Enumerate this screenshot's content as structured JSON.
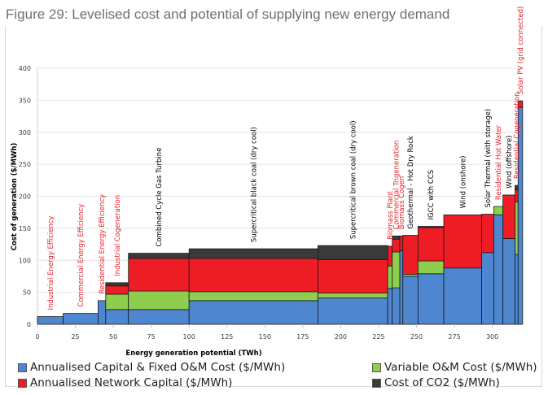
{
  "figure_title": "Figure 29: Levelised cost and potential of supplying new energy demand",
  "colors": {
    "capital": "#4f86d0",
    "variable": "#8dce4e",
    "network": "#ee1c25",
    "co2": "#3a3a3a",
    "red_label": "#e8202a",
    "black_label": "#000000",
    "grid": "#e4e4e4"
  },
  "chart_data": {
    "type": "bar",
    "subtype": "variable-width stacked (supply cost curve)",
    "title": "Figure 29: Levelised cost and potential of supplying new energy demand",
    "xlabel": "Energy generation potential (TWh)",
    "ylabel": "Cost of generation ($/MWh)",
    "xlim": [
      0,
      330
    ],
    "ylim": [
      0,
      400
    ],
    "xticks": [
      0,
      25,
      50,
      75,
      100,
      125,
      150,
      175,
      200,
      225,
      250,
      275,
      300
    ],
    "yticks": [
      0,
      50,
      100,
      150,
      200,
      250,
      300,
      350,
      400
    ],
    "grid": true,
    "legend_position": "bottom",
    "series": [
      {
        "key": "capital",
        "name": "Annualised Capital & Fixed O&M Cost ($/MWh)"
      },
      {
        "key": "variable",
        "name": "Variable O&M Cost ($/MWh)"
      },
      {
        "key": "network",
        "name": "Annualised Network Capital ($/MWh)"
      },
      {
        "key": "co2",
        "name": "Cost of CO2 ($/MWh)"
      }
    ],
    "bars": [
      {
        "label": "Industrial Energy Efficiency",
        "label_color": "red",
        "x0": 0,
        "x1": 17,
        "capital": 12,
        "variable": 0,
        "network": 0,
        "co2": 0
      },
      {
        "label": "Commercial Energy Efficiency",
        "label_color": "red",
        "x0": 17,
        "x1": 40,
        "capital": 17,
        "variable": 0,
        "network": 0,
        "co2": 0
      },
      {
        "label": "Residential Energy Efficiency",
        "label_color": "red",
        "x0": 40,
        "x1": 45,
        "capital": 37,
        "variable": 0,
        "network": 0,
        "co2": 0
      },
      {
        "label": "Industrial Cogeneration",
        "label_color": "red",
        "x0": 45,
        "x1": 60,
        "capital": 23,
        "variable": 24,
        "network": 13,
        "co2": 5
      },
      {
        "label": "Combined Cycle Gas Turbine",
        "label_color": "black",
        "x0": 60,
        "x1": 100,
        "capital": 23,
        "variable": 29,
        "network": 51,
        "co2": 8
      },
      {
        "label": "Supercritical black coal (dry cool)",
        "label_color": "black",
        "x0": 100,
        "x1": 185,
        "capital": 37,
        "variable": 14,
        "network": 52,
        "co2": 15
      },
      {
        "label": "Supercritical brown coal (dry cool)",
        "label_color": "black",
        "x0": 185,
        "x1": 231,
        "capital": 41,
        "variable": 8,
        "network": 52,
        "co2": 22
      },
      {
        "label": "Biomass Plant",
        "label_color": "red",
        "x0": 231,
        "x1": 234,
        "capital": 56,
        "variable": 35,
        "network": 31,
        "co2": 0
      },
      {
        "label": "Commercial Trigeneration",
        "label_color": "red",
        "x0": 234,
        "x1": 239,
        "capital": 57,
        "variable": 56,
        "network": 20,
        "co2": 5
      },
      {
        "label": "Biomass Cogen",
        "label_color": "red",
        "x0": 239,
        "x1": 241,
        "capital": 115,
        "variable": 0,
        "network": 23,
        "co2": 0
      },
      {
        "label": "Geothermal - Hot Dry Rock",
        "label_color": "black",
        "x0": 241,
        "x1": 251,
        "capital": 75,
        "variable": 3,
        "network": 61,
        "co2": 0
      },
      {
        "label": "IGCC with CCS",
        "label_color": "black",
        "x0": 251,
        "x1": 268,
        "capital": 79,
        "variable": 20,
        "network": 52,
        "co2": 2
      },
      {
        "label": "Wind (onshore)",
        "label_color": "black",
        "x0": 268,
        "x1": 293,
        "capital": 88,
        "variable": 0,
        "network": 83,
        "co2": 0
      },
      {
        "label": "Solar Thermal (with storage)",
        "label_color": "black",
        "x0": 293,
        "x1": 301,
        "capital": 112,
        "variable": 0,
        "network": 60,
        "co2": 0
      },
      {
        "label": "Residential Hot Water",
        "label_color": "red",
        "x0": 301,
        "x1": 307,
        "capital": 171,
        "variable": 13,
        "network": 0,
        "co2": 0
      },
      {
        "label": "Wind (offshore)",
        "label_color": "black",
        "x0": 307,
        "x1": 315,
        "capital": 134,
        "variable": 0,
        "network": 68,
        "co2": 0
      },
      {
        "label": "Residential Cogeneration",
        "label_color": "red",
        "x0": 315,
        "x1": 317,
        "capital": 109,
        "variable": 82,
        "network": 19,
        "co2": 7
      },
      {
        "label": "Solar PV (grid connected)",
        "label_color": "red",
        "x0": 317,
        "x1": 320,
        "capital": 339,
        "variable": 0,
        "network": 10,
        "co2": 0
      }
    ]
  }
}
